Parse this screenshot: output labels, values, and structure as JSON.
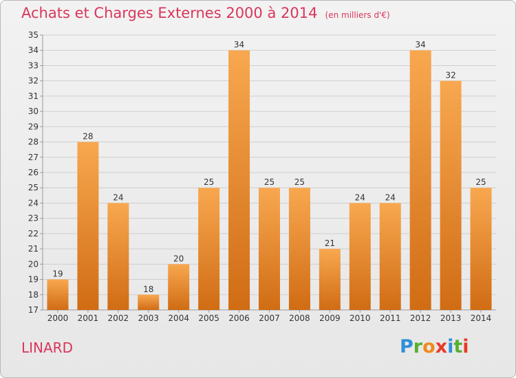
{
  "header": {
    "title": "Achats et Charges Externes 2000 à 2014",
    "unit": "(en milliers d'€)"
  },
  "commune": "LINARD",
  "logo": {
    "text": "Proxiti",
    "letters": [
      {
        "ch": "P",
        "color": "#2f8fd8"
      },
      {
        "ch": "r",
        "color": "#55b030"
      },
      {
        "ch": "o",
        "color": "#f08a1c"
      },
      {
        "ch": "x",
        "color": "#e83a2a"
      },
      {
        "ch": "i",
        "color": "#2f8fd8"
      },
      {
        "ch": "t",
        "color": "#55b030"
      },
      {
        "ch": "i",
        "color": "#e83a2a"
      }
    ]
  },
  "colors": {
    "title": "#d9365a",
    "bar_light": "#f8a850",
    "bar_dark": "#d06c14",
    "grid": "#cfcfcf",
    "axis_text": "#333333"
  },
  "chart_data": {
    "type": "bar",
    "categories": [
      "2000",
      "2001",
      "2002",
      "2003",
      "2004",
      "2005",
      "2006",
      "2007",
      "2008",
      "2009",
      "2010",
      "2011",
      "2012",
      "2013",
      "2014"
    ],
    "values": [
      19,
      28,
      24,
      18,
      20,
      25,
      34,
      25,
      25,
      21,
      24,
      24,
      34,
      32,
      25
    ],
    "ylim": [
      17,
      35
    ],
    "yticks": [
      17,
      18,
      19,
      20,
      21,
      22,
      23,
      24,
      25,
      26,
      27,
      28,
      29,
      30,
      31,
      32,
      33,
      34,
      35
    ],
    "grid": true,
    "xlabel": "",
    "ylabel": ""
  }
}
